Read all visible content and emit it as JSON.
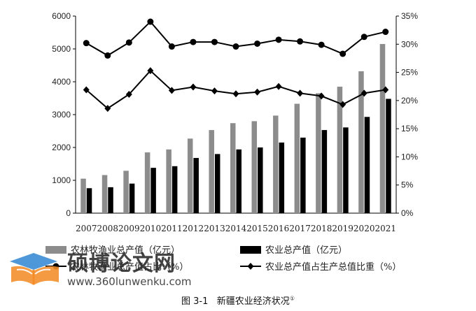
{
  "chart_data": {
    "type": "bar",
    "title": "",
    "categories": [
      "2007",
      "2008",
      "2009",
      "2010",
      "2011",
      "2012",
      "2013",
      "2014",
      "2015",
      "2016",
      "2017",
      "2018",
      "2019",
      "2020",
      "2021"
    ],
    "y_left": {
      "ylim": [
        0,
        6000
      ],
      "ticks": [
        "0",
        "1000",
        "2000",
        "3000",
        "4000",
        "5000",
        "6000"
      ]
    },
    "y_right": {
      "ylim": [
        0,
        35
      ],
      "ticks": [
        "0%",
        "5%",
        "10%",
        "15%",
        "20%",
        "25%",
        "30%",
        "35%"
      ]
    },
    "series": [
      {
        "name": "农林牧渔业总产值（亿元）",
        "kind": "bar",
        "axis": "left",
        "color": "#8c8c8c",
        "values": [
          1050,
          1160,
          1290,
          1850,
          1940,
          2270,
          2530,
          2740,
          2800,
          2970,
          3330,
          3650,
          3850,
          4320,
          5150
        ]
      },
      {
        "name": "农业总产值（亿元）",
        "kind": "bar",
        "axis": "left",
        "color": "#000000",
        "values": [
          760,
          790,
          900,
          1380,
          1430,
          1680,
          1800,
          1940,
          2000,
          2150,
          2300,
          2530,
          2610,
          2930,
          3480
        ]
      },
      {
        "name": "农林牧渔业总产值占比（%）",
        "kind": "line",
        "axis": "right",
        "marker": "circle",
        "color": "#000000",
        "values": [
          30.2,
          28.0,
          30.3,
          34.0,
          29.6,
          30.4,
          30.4,
          29.6,
          30.1,
          30.8,
          30.5,
          29.9,
          28.3,
          31.3,
          32.2
        ]
      },
      {
        "name": "农业总产值占生产总值比重（%）",
        "kind": "line",
        "axis": "right",
        "marker": "diamond",
        "color": "#000000",
        "values": [
          21.9,
          18.6,
          21.1,
          25.3,
          21.8,
          22.4,
          21.7,
          21.2,
          21.5,
          22.5,
          21.3,
          20.8,
          19.3,
          21.3,
          21.9
        ]
      }
    ]
  },
  "legend": {
    "item1": "农林牧渔业总产值（亿元）",
    "item2": "农业总产值（亿元）",
    "item3": "农林牧渔业总产值占比（%）",
    "item4": "农业总产值占生产总值比重（%）"
  },
  "caption": {
    "label": "图 3-1",
    "text": "新疆农业经济状况",
    "note": "①"
  },
  "watermark": {
    "text": "硕博论文网",
    "url": "www.360lunwenku.com"
  }
}
